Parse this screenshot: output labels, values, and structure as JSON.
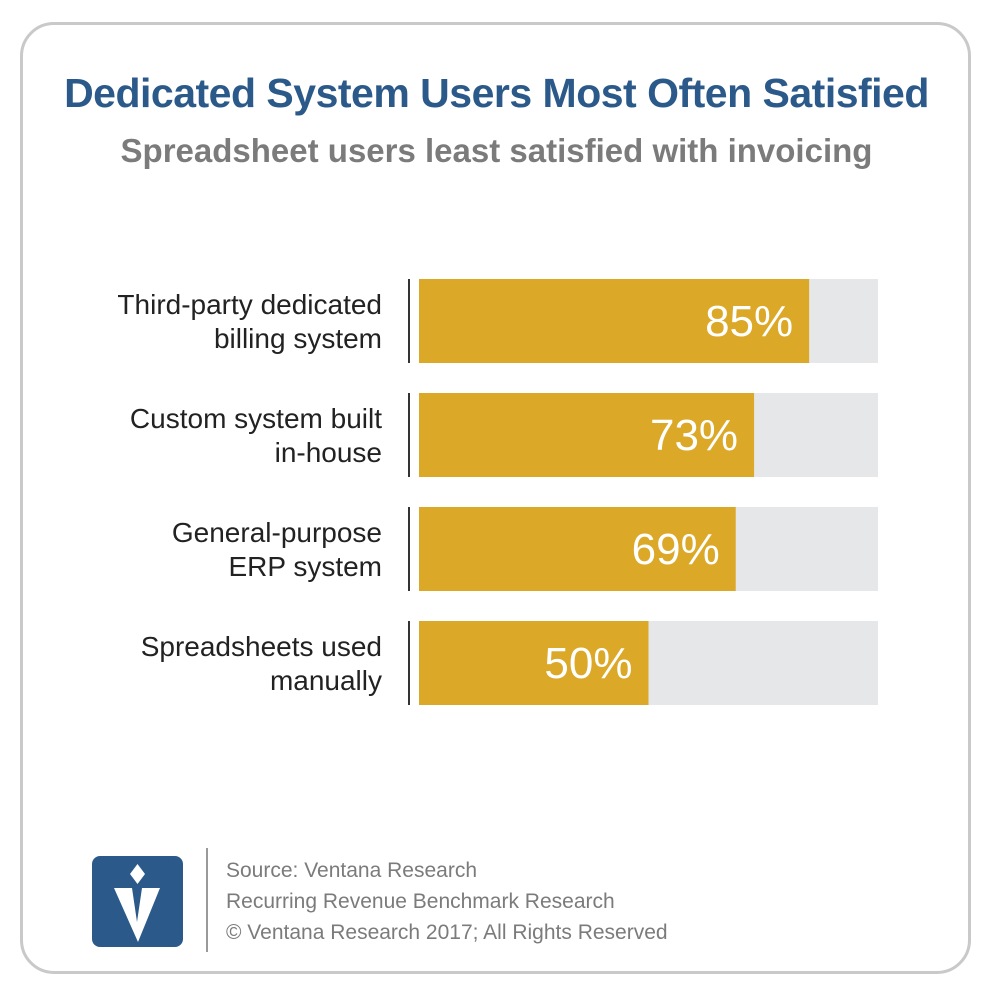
{
  "title": "Dedicated System Users Most Often Satisfied",
  "subtitle": "Spreadsheet users least satisfied with invoicing",
  "colors": {
    "bar": "#dba827",
    "track": "#e6e7e8",
    "title": "#2b5a8a",
    "text": "#7b7b7b"
  },
  "chart_data": {
    "type": "bar",
    "orientation": "horizontal",
    "title": "Dedicated System Users Most Often Satisfied",
    "subtitle": "Spreadsheet users least satisfied with invoicing",
    "categories": [
      [
        "Third-party dedicated",
        "billing system"
      ],
      [
        "Custom system built",
        "in-house"
      ],
      [
        "General-purpose",
        "ERP system"
      ],
      [
        "Spreadsheets used",
        "manually"
      ]
    ],
    "values": [
      85,
      73,
      69,
      50
    ],
    "value_labels": [
      "85%",
      "73%",
      "69%",
      "50%"
    ],
    "xlim": [
      0,
      100
    ],
    "grid": false,
    "legend": "none"
  },
  "footer": {
    "logo_icon": "ventana-v-logo-icon",
    "source_lines": [
      "Source: Ventana Research",
      "Recurring Revenue Benchmark Research",
      "© Ventana Research 2017; All Rights Reserved"
    ]
  }
}
